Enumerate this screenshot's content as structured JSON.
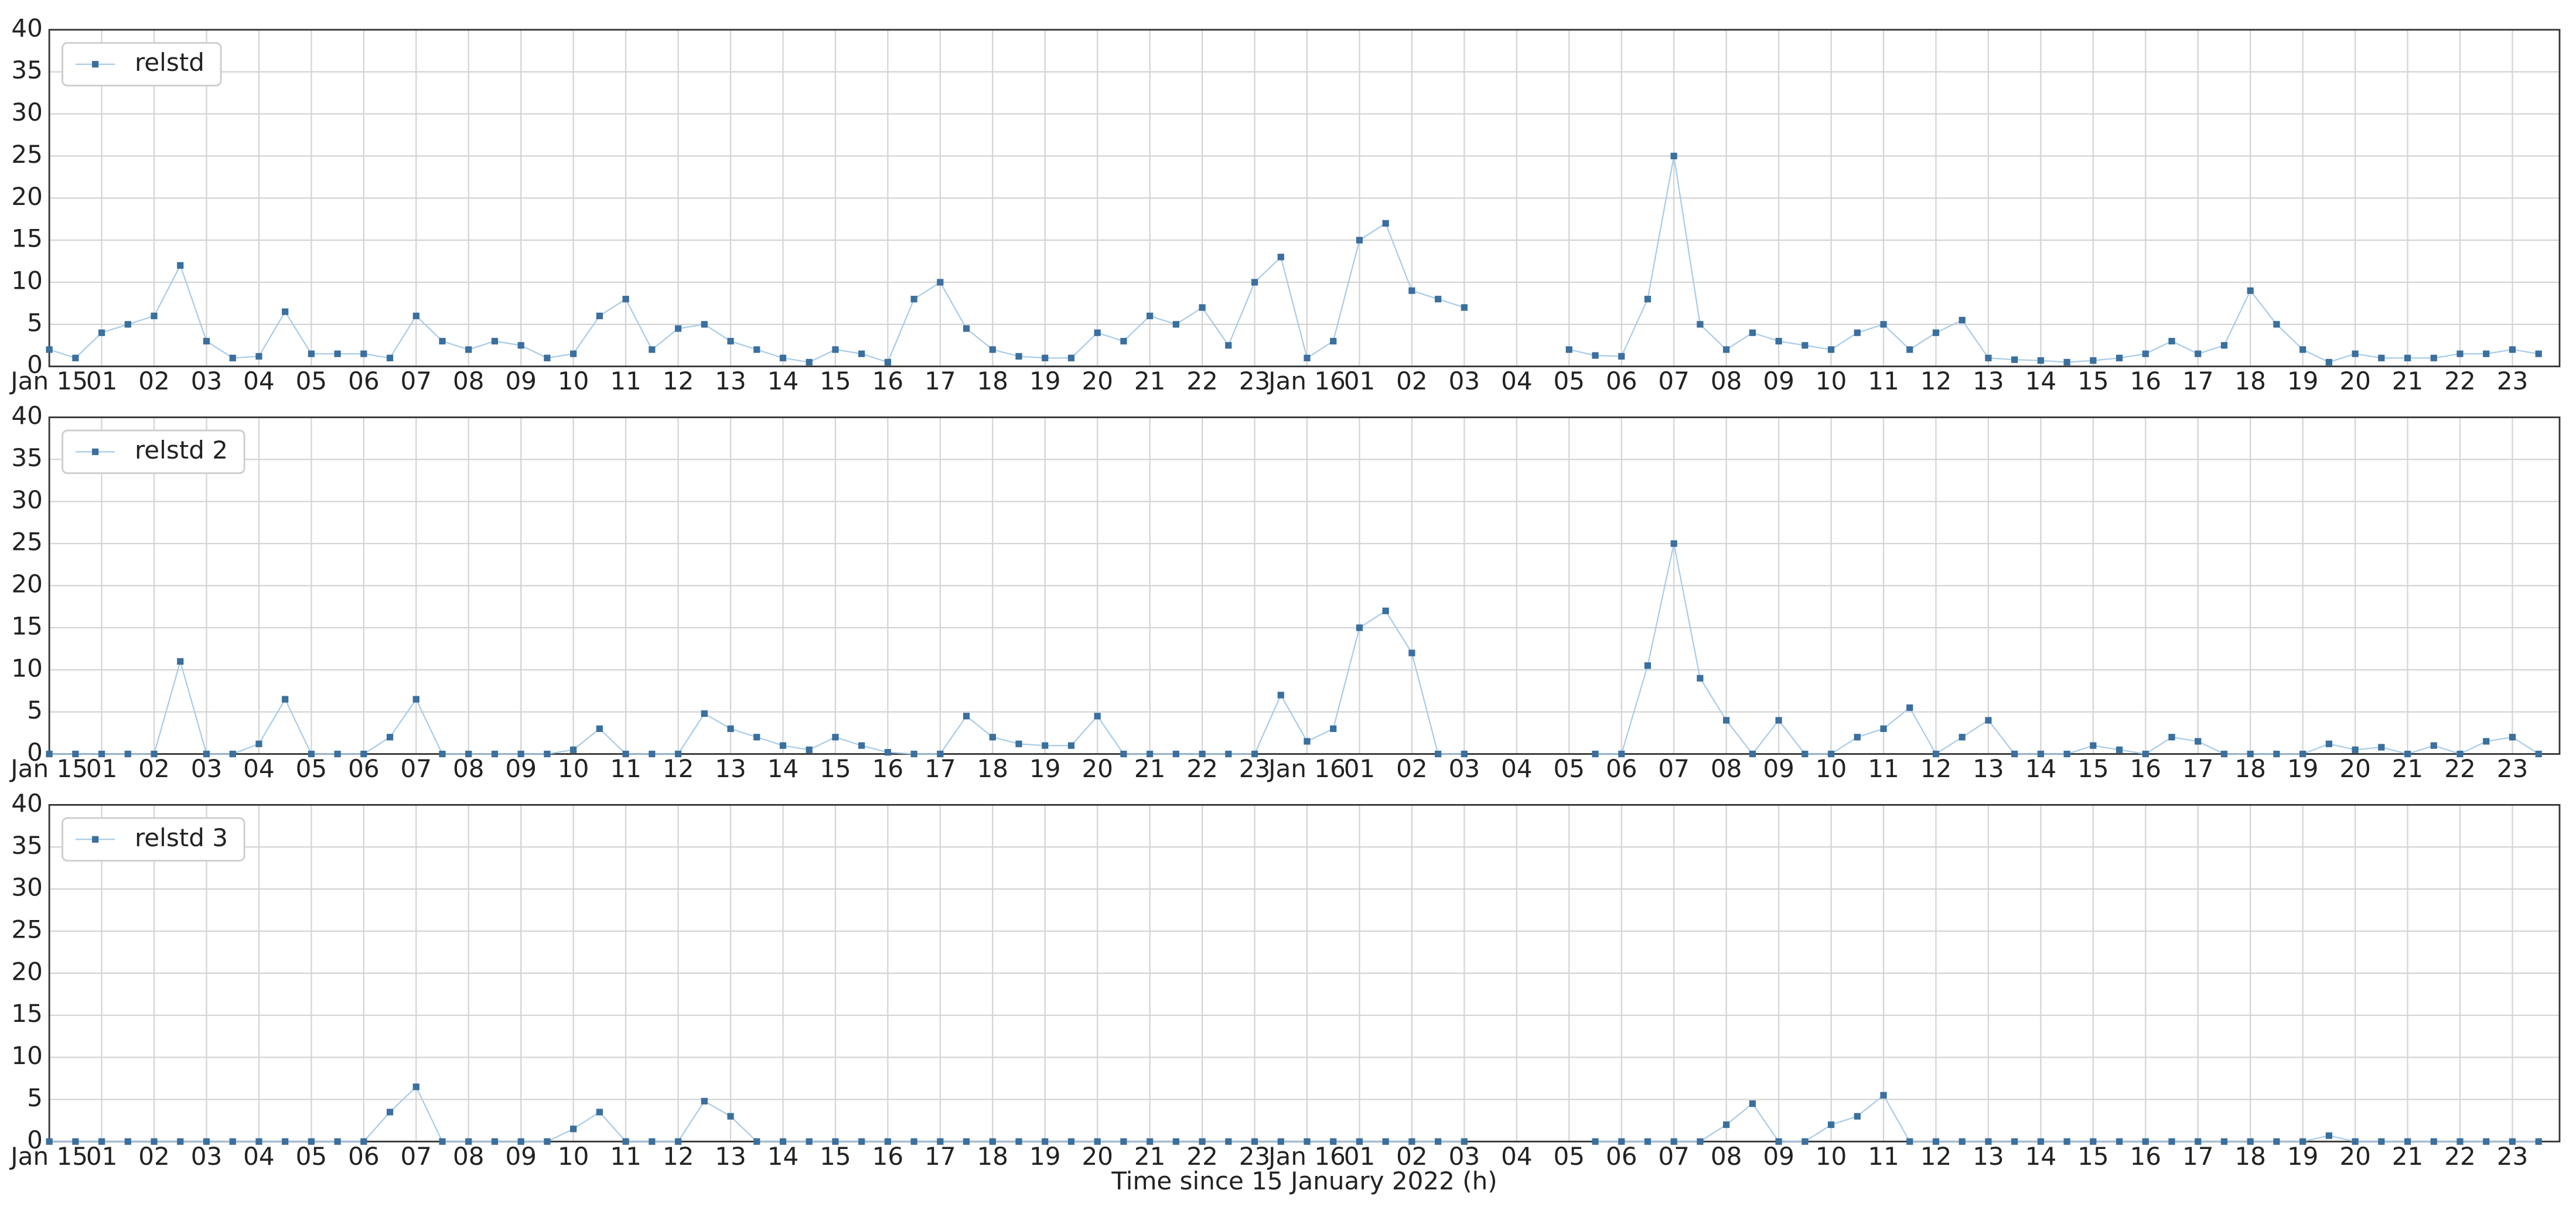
{
  "chart_data": [
    {
      "type": "line",
      "legend": "upper left",
      "grid": true,
      "line_color": "#a9cce8",
      "x": [
        0,
        0.5,
        1,
        1.5,
        2,
        2.5,
        3,
        3.5,
        4,
        4.5,
        5,
        5.5,
        6,
        6.5,
        7,
        7.5,
        8,
        8.5,
        9,
        9.5,
        10,
        10.5,
        11,
        11.5,
        12,
        12.5,
        13,
        13.5,
        14,
        14.5,
        15,
        15.5,
        16,
        16.5,
        17,
        17.5,
        18,
        18.5,
        19,
        19.5,
        20,
        20.5,
        21,
        21.5,
        22,
        22.5,
        23,
        23.5,
        24,
        24.5,
        25,
        25.5,
        26,
        26.5,
        27,
        27.5,
        28,
        28.5,
        29,
        29.5,
        30,
        30.5,
        31,
        31.5,
        32,
        32.5,
        33,
        33.5,
        34,
        34.5,
        35,
        35.5,
        36,
        36.5,
        37,
        37.5,
        38,
        38.5,
        39,
        39.5,
        40,
        40.5,
        41,
        41.5,
        42,
        42.5,
        43,
        43.5,
        44,
        44.5,
        45,
        45.5,
        46,
        46.5,
        47,
        47.5
      ],
      "series": [
        {
          "name": "relstd",
          "color": "#3a6f9e",
          "values": [
            2,
            1,
            4,
            5,
            6,
            12,
            3,
            1,
            1.2,
            6.5,
            1.5,
            1.5,
            1.5,
            1,
            6,
            3,
            2,
            3,
            2.5,
            1,
            1.5,
            6,
            8,
            2,
            4.5,
            5,
            3,
            2,
            1,
            0.5,
            2,
            1.5,
            0.5,
            8,
            10,
            4.5,
            2,
            1.2,
            1,
            1,
            4,
            3,
            6,
            5,
            7,
            2.5,
            10,
            13,
            1,
            3,
            15,
            17,
            9,
            8,
            7,
            null,
            null,
            null,
            2,
            1.3,
            1.2,
            8,
            25,
            5,
            2,
            4,
            3,
            2.5,
            2,
            4,
            5,
            2,
            4,
            5.5,
            1,
            0.8,
            0.7,
            0.5,
            0.7,
            1,
            1.5,
            3,
            1.5,
            2.5,
            9,
            5,
            2,
            0.5,
            1.5,
            1,
            1,
            1,
            1.5,
            1.5,
            2,
            1.5
          ]
        }
      ],
      "xlim": [
        0,
        47.9
      ],
      "ylim": [
        0,
        40
      ],
      "yticks": [
        0,
        5,
        10,
        15,
        20,
        25,
        30,
        35,
        40
      ],
      "xticks": [
        {
          "value": 0,
          "label": "Jan 15"
        },
        {
          "value": 1,
          "label": "01"
        },
        {
          "value": 2,
          "label": "02"
        },
        {
          "value": 3,
          "label": "03"
        },
        {
          "value": 4,
          "label": "04"
        },
        {
          "value": 5,
          "label": "05"
        },
        {
          "value": 6,
          "label": "06"
        },
        {
          "value": 7,
          "label": "07"
        },
        {
          "value": 8,
          "label": "08"
        },
        {
          "value": 9,
          "label": "09"
        },
        {
          "value": 10,
          "label": "10"
        },
        {
          "value": 11,
          "label": "11"
        },
        {
          "value": 12,
          "label": "12"
        },
        {
          "value": 13,
          "label": "13"
        },
        {
          "value": 14,
          "label": "14"
        },
        {
          "value": 15,
          "label": "15"
        },
        {
          "value": 16,
          "label": "16"
        },
        {
          "value": 17,
          "label": "17"
        },
        {
          "value": 18,
          "label": "18"
        },
        {
          "value": 19,
          "label": "19"
        },
        {
          "value": 20,
          "label": "20"
        },
        {
          "value": 21,
          "label": "21"
        },
        {
          "value": 22,
          "label": "22"
        },
        {
          "value": 23,
          "label": "23"
        },
        {
          "value": 24,
          "label": "Jan 16"
        },
        {
          "value": 25,
          "label": "01"
        },
        {
          "value": 26,
          "label": "02"
        },
        {
          "value": 27,
          "label": "03"
        },
        {
          "value": 28,
          "label": "04"
        },
        {
          "value": 29,
          "label": "05"
        },
        {
          "value": 30,
          "label": "06"
        },
        {
          "value": 31,
          "label": "07"
        },
        {
          "value": 32,
          "label": "08"
        },
        {
          "value": 33,
          "label": "09"
        },
        {
          "value": 34,
          "label": "10"
        },
        {
          "value": 35,
          "label": "11"
        },
        {
          "value": 36,
          "label": "12"
        },
        {
          "value": 37,
          "label": "13"
        },
        {
          "value": 38,
          "label": "14"
        },
        {
          "value": 39,
          "label": "15"
        },
        {
          "value": 40,
          "label": "16"
        },
        {
          "value": 41,
          "label": "17"
        },
        {
          "value": 42,
          "label": "18"
        },
        {
          "value": 43,
          "label": "19"
        },
        {
          "value": 44,
          "label": "20"
        },
        {
          "value": 45,
          "label": "21"
        },
        {
          "value": 46,
          "label": "22"
        },
        {
          "value": 47,
          "label": "23"
        }
      ]
    },
    {
      "type": "line",
      "legend": "upper left",
      "grid": true,
      "line_color": "#a9cce8",
      "x": [
        0,
        0.5,
        1,
        1.5,
        2,
        2.5,
        3,
        3.5,
        4,
        4.5,
        5,
        5.5,
        6,
        6.5,
        7,
        7.5,
        8,
        8.5,
        9,
        9.5,
        10,
        10.5,
        11,
        11.5,
        12,
        12.5,
        13,
        13.5,
        14,
        14.5,
        15,
        15.5,
        16,
        16.5,
        17,
        17.5,
        18,
        18.5,
        19,
        19.5,
        20,
        20.5,
        21,
        21.5,
        22,
        22.5,
        23,
        23.5,
        24,
        24.5,
        25,
        25.5,
        26,
        26.5,
        27,
        27.5,
        28,
        28.5,
        29,
        29.5,
        30,
        30.5,
        31,
        31.5,
        32,
        32.5,
        33,
        33.5,
        34,
        34.5,
        35,
        35.5,
        36,
        36.5,
        37,
        37.5,
        38,
        38.5,
        39,
        39.5,
        40,
        40.5,
        41,
        41.5,
        42,
        42.5,
        43,
        43.5,
        44,
        44.5,
        45,
        45.5,
        46,
        46.5,
        47,
        47.5
      ],
      "series": [
        {
          "name": "relstd 2",
          "color": "#3a6f9e",
          "values": [
            0,
            0,
            0,
            0,
            0,
            11,
            0,
            0,
            1.2,
            6.5,
            0,
            0,
            0,
            2,
            6.5,
            0,
            0,
            0,
            0,
            0,
            0.5,
            3,
            0,
            0,
            0,
            4.8,
            3,
            2,
            1,
            0.5,
            2,
            1,
            0.2,
            0,
            0,
            4.5,
            2,
            1.2,
            1,
            1,
            4.5,
            0,
            0,
            0,
            0,
            0,
            0,
            7,
            1.5,
            3,
            15,
            17,
            12,
            0,
            0,
            null,
            null,
            null,
            null,
            0,
            0,
            10.5,
            25,
            9,
            4,
            0,
            4,
            0,
            0,
            2,
            3,
            5.5,
            0,
            2,
            4,
            0,
            0,
            0,
            1,
            0.5,
            0,
            2,
            1.5,
            0,
            0,
            0,
            0,
            1.2,
            0.5,
            0.8,
            0,
            1,
            0,
            1.5,
            2,
            0
          ]
        }
      ],
      "xlim": [
        0,
        47.9
      ],
      "ylim": [
        0,
        40
      ],
      "yticks": [
        0,
        5,
        10,
        15,
        20,
        25,
        30,
        35,
        40
      ],
      "xticks": [
        {
          "value": 0,
          "label": "Jan 15"
        },
        {
          "value": 1,
          "label": "01"
        },
        {
          "value": 2,
          "label": "02"
        },
        {
          "value": 3,
          "label": "03"
        },
        {
          "value": 4,
          "label": "04"
        },
        {
          "value": 5,
          "label": "05"
        },
        {
          "value": 6,
          "label": "06"
        },
        {
          "value": 7,
          "label": "07"
        },
        {
          "value": 8,
          "label": "08"
        },
        {
          "value": 9,
          "label": "09"
        },
        {
          "value": 10,
          "label": "10"
        },
        {
          "value": 11,
          "label": "11"
        },
        {
          "value": 12,
          "label": "12"
        },
        {
          "value": 13,
          "label": "13"
        },
        {
          "value": 14,
          "label": "14"
        },
        {
          "value": 15,
          "label": "15"
        },
        {
          "value": 16,
          "label": "16"
        },
        {
          "value": 17,
          "label": "17"
        },
        {
          "value": 18,
          "label": "18"
        },
        {
          "value": 19,
          "label": "19"
        },
        {
          "value": 20,
          "label": "20"
        },
        {
          "value": 21,
          "label": "21"
        },
        {
          "value": 22,
          "label": "22"
        },
        {
          "value": 23,
          "label": "23"
        },
        {
          "value": 24,
          "label": "Jan 16"
        },
        {
          "value": 25,
          "label": "01"
        },
        {
          "value": 26,
          "label": "02"
        },
        {
          "value": 27,
          "label": "03"
        },
        {
          "value": 28,
          "label": "04"
        },
        {
          "value": 29,
          "label": "05"
        },
        {
          "value": 30,
          "label": "06"
        },
        {
          "value": 31,
          "label": "07"
        },
        {
          "value": 32,
          "label": "08"
        },
        {
          "value": 33,
          "label": "09"
        },
        {
          "value": 34,
          "label": "10"
        },
        {
          "value": 35,
          "label": "11"
        },
        {
          "value": 36,
          "label": "12"
        },
        {
          "value": 37,
          "label": "13"
        },
        {
          "value": 38,
          "label": "14"
        },
        {
          "value": 39,
          "label": "15"
        },
        {
          "value": 40,
          "label": "16"
        },
        {
          "value": 41,
          "label": "17"
        },
        {
          "value": 42,
          "label": "18"
        },
        {
          "value": 43,
          "label": "19"
        },
        {
          "value": 44,
          "label": "20"
        },
        {
          "value": 45,
          "label": "21"
        },
        {
          "value": 46,
          "label": "22"
        },
        {
          "value": 47,
          "label": "23"
        }
      ]
    },
    {
      "type": "line",
      "legend": "upper left",
      "grid": true,
      "line_color": "#a9cce8",
      "x_label": "Time since 15 January 2022 (h)",
      "x": [
        0,
        0.5,
        1,
        1.5,
        2,
        2.5,
        3,
        3.5,
        4,
        4.5,
        5,
        5.5,
        6,
        6.5,
        7,
        7.5,
        8,
        8.5,
        9,
        9.5,
        10,
        10.5,
        11,
        11.5,
        12,
        12.5,
        13,
        13.5,
        14,
        14.5,
        15,
        15.5,
        16,
        16.5,
        17,
        17.5,
        18,
        18.5,
        19,
        19.5,
        20,
        20.5,
        21,
        21.5,
        22,
        22.5,
        23,
        23.5,
        24,
        24.5,
        25,
        25.5,
        26,
        26.5,
        27,
        27.5,
        28,
        28.5,
        29,
        29.5,
        30,
        30.5,
        31,
        31.5,
        32,
        32.5,
        33,
        33.5,
        34,
        34.5,
        35,
        35.5,
        36,
        36.5,
        37,
        37.5,
        38,
        38.5,
        39,
        39.5,
        40,
        40.5,
        41,
        41.5,
        42,
        42.5,
        43,
        43.5,
        44,
        44.5,
        45,
        45.5,
        46,
        46.5,
        47,
        47.5
      ],
      "series": [
        {
          "name": "relstd 3",
          "color": "#3a6f9e",
          "values": [
            0,
            0,
            0,
            0,
            0,
            0,
            0,
            0,
            0,
            0,
            0,
            0,
            0,
            3.5,
            6.5,
            0,
            0,
            0,
            0,
            0,
            1.5,
            3.5,
            0,
            0,
            0,
            4.8,
            3,
            0,
            0,
            0,
            0,
            0,
            0,
            0,
            0,
            0,
            0,
            0,
            0,
            0,
            0,
            0,
            0,
            0,
            0,
            0,
            0,
            0,
            0,
            0,
            0,
            0,
            0,
            0,
            0,
            null,
            null,
            null,
            null,
            0,
            0,
            0,
            0,
            0,
            2,
            4.5,
            0,
            0,
            2,
            3,
            5.5,
            0,
            0,
            0,
            0,
            0,
            0,
            0,
            0,
            0,
            0,
            0,
            0,
            0,
            0,
            0,
            0,
            0.7,
            0,
            0,
            0,
            0,
            0,
            0,
            0,
            0
          ]
        }
      ],
      "xlim": [
        0,
        47.9
      ],
      "ylim": [
        0,
        40
      ],
      "yticks": [
        0,
        5,
        10,
        15,
        20,
        25,
        30,
        35,
        40
      ],
      "xticks": [
        {
          "value": 0,
          "label": "Jan 15"
        },
        {
          "value": 1,
          "label": "01"
        },
        {
          "value": 2,
          "label": "02"
        },
        {
          "value": 3,
          "label": "03"
        },
        {
          "value": 4,
          "label": "04"
        },
        {
          "value": 5,
          "label": "05"
        },
        {
          "value": 6,
          "label": "06"
        },
        {
          "value": 7,
          "label": "07"
        },
        {
          "value": 8,
          "label": "08"
        },
        {
          "value": 9,
          "label": "09"
        },
        {
          "value": 10,
          "label": "10"
        },
        {
          "value": 11,
          "label": "11"
        },
        {
          "value": 12,
          "label": "12"
        },
        {
          "value": 13,
          "label": "13"
        },
        {
          "value": 14,
          "label": "14"
        },
        {
          "value": 15,
          "label": "15"
        },
        {
          "value": 16,
          "label": "16"
        },
        {
          "value": 17,
          "label": "17"
        },
        {
          "value": 18,
          "label": "18"
        },
        {
          "value": 19,
          "label": "19"
        },
        {
          "value": 20,
          "label": "20"
        },
        {
          "value": 21,
          "label": "21"
        },
        {
          "value": 22,
          "label": "22"
        },
        {
          "value": 23,
          "label": "23"
        },
        {
          "value": 24,
          "label": "Jan 16"
        },
        {
          "value": 25,
          "label": "01"
        },
        {
          "value": 26,
          "label": "02"
        },
        {
          "value": 27,
          "label": "03"
        },
        {
          "value": 28,
          "label": "04"
        },
        {
          "value": 29,
          "label": "05"
        },
        {
          "value": 30,
          "label": "06"
        },
        {
          "value": 31,
          "label": "07"
        },
        {
          "value": 32,
          "label": "08"
        },
        {
          "value": 33,
          "label": "09"
        },
        {
          "value": 34,
          "label": "10"
        },
        {
          "value": 35,
          "label": "11"
        },
        {
          "value": 36,
          "label": "12"
        },
        {
          "value": 37,
          "label": "13"
        },
        {
          "value": 38,
          "label": "14"
        },
        {
          "value": 39,
          "label": "15"
        },
        {
          "value": 40,
          "label": "16"
        },
        {
          "value": 41,
          "label": "17"
        },
        {
          "value": 42,
          "label": "18"
        },
        {
          "value": 43,
          "label": "19"
        },
        {
          "value": 44,
          "label": "20"
        },
        {
          "value": 45,
          "label": "21"
        },
        {
          "value": 46,
          "label": "22"
        },
        {
          "value": 47,
          "label": "23"
        }
      ]
    }
  ]
}
